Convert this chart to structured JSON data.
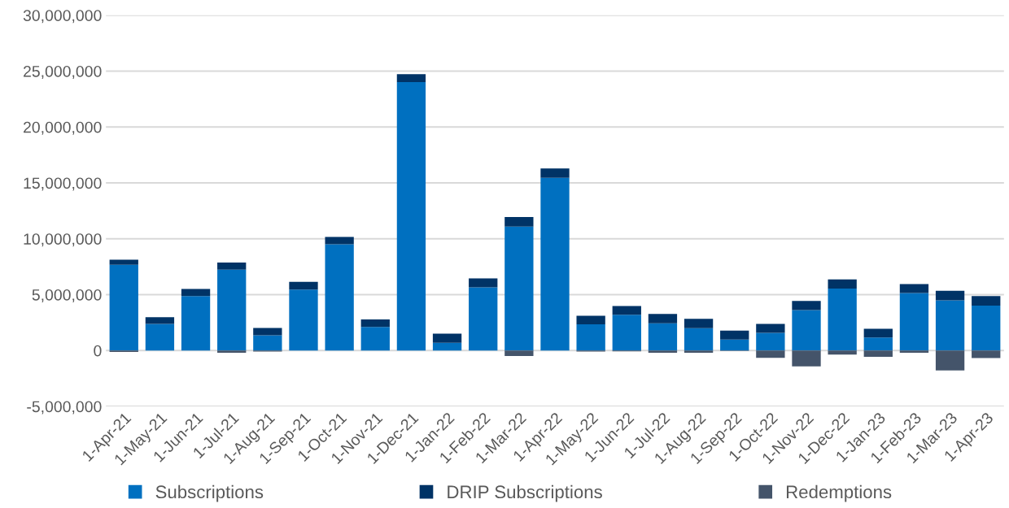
{
  "chart_data": {
    "type": "bar",
    "stacked": true,
    "categories": [
      "1-Apr-21",
      "1-May-21",
      "1-Jun-21",
      "1-Jul-21",
      "1-Aug-21",
      "1-Sep-21",
      "1-Oct-21",
      "1-Nov-21",
      "1-Dec-21",
      "1-Jan-22",
      "1-Feb-22",
      "1-Mar-22",
      "1-Apr-22",
      "1-May-22",
      "1-Jun-22",
      "1-Jul-22",
      "1-Aug-22",
      "1-Sep-22",
      "1-Oct-22",
      "1-Nov-22",
      "1-Dec-22",
      "1-Jan-23",
      "1-Feb-23",
      "1-Mar-23",
      "1-Apr-23"
    ],
    "series": [
      {
        "name": "Subscriptions",
        "color": "#0070c0",
        "values": [
          7680000,
          2390000,
          4880000,
          7240000,
          1370000,
          5460000,
          9510000,
          2100000,
          24020000,
          690000,
          5660000,
          11100000,
          15450000,
          2340000,
          3200000,
          2440000,
          2000000,
          980000,
          1590000,
          3610000,
          5540000,
          1170000,
          5150000,
          4490000,
          4020000
        ]
      },
      {
        "name": "DRIP Subscriptions",
        "color": "#003366",
        "values": [
          440000,
          590000,
          630000,
          640000,
          650000,
          690000,
          660000,
          680000,
          710000,
          820000,
          800000,
          840000,
          850000,
          760000,
          780000,
          830000,
          830000,
          810000,
          800000,
          830000,
          830000,
          780000,
          800000,
          850000,
          860000
        ]
      },
      {
        "name": "Redemptions",
        "color": "#44546a",
        "values": [
          -120000,
          0,
          0,
          -200000,
          -100000,
          0,
          0,
          0,
          0,
          0,
          0,
          -490000,
          0,
          -100000,
          -80000,
          -200000,
          -200000,
          -30000,
          -660000,
          -1410000,
          -370000,
          -560000,
          -200000,
          -1780000,
          -680000
        ]
      }
    ],
    "ylim": [
      -5000000,
      30000000
    ],
    "yticks": [
      {
        "value": -5000000,
        "label": "-5,000,000"
      },
      0,
      {
        "value": 5000000,
        "label": "5,000,000"
      },
      {
        "value": 10000000,
        "label": "10,000,000"
      },
      {
        "value": 15000000,
        "label": "15,000,000"
      },
      {
        "value": 20000000,
        "label": "20,000,000"
      },
      {
        "value": 25000000,
        "label": "25,000,000"
      },
      {
        "value": 30000000,
        "label": "30,000,000"
      }
    ],
    "grid": "y",
    "legend": "bottom",
    "marker": "square"
  }
}
